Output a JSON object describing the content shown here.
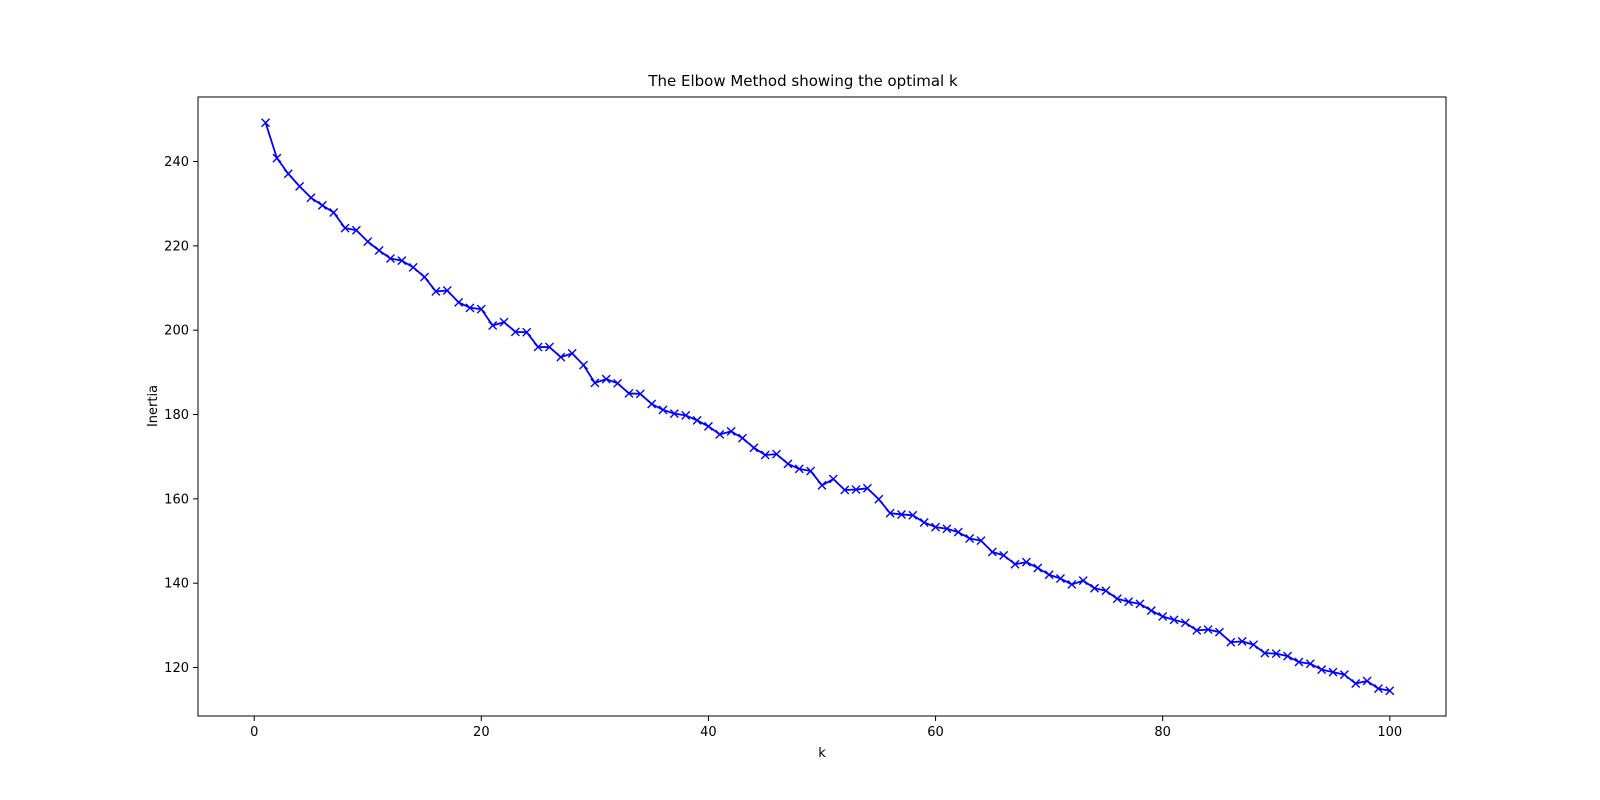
{
  "chart_data": {
    "type": "line",
    "title": "The Elbow Method showing the optimal k",
    "xlabel": "k",
    "ylabel": "Inertia",
    "xlim": [
      -4.95,
      104.95
    ],
    "ylim": [
      108.5,
      255.3
    ],
    "xticks": [
      0,
      20,
      40,
      60,
      80,
      100
    ],
    "yticks": [
      120,
      140,
      160,
      180,
      200,
      220,
      240
    ],
    "grid": false,
    "legend": "none",
    "colors": {
      "line": "#0000ff"
    },
    "marker": "x",
    "series": [
      {
        "x": [
          1,
          2,
          3,
          4,
          5,
          6,
          7,
          8,
          9,
          10,
          11,
          12,
          13,
          14,
          15,
          16,
          17,
          18,
          19,
          20,
          21,
          22,
          23,
          24,
          25,
          26,
          27,
          28,
          29,
          30,
          31,
          32,
          33,
          34,
          35,
          36,
          37,
          38,
          39,
          40,
          41,
          42,
          43,
          44,
          45,
          46,
          47,
          48,
          49,
          50,
          51,
          52,
          53,
          54,
          55,
          56,
          57,
          58,
          59,
          60,
          61,
          62,
          63,
          64,
          65,
          66,
          67,
          68,
          69,
          70,
          71,
          72,
          73,
          74,
          75,
          76,
          77,
          78,
          79,
          80,
          81,
          82,
          83,
          84,
          85,
          86,
          87,
          88,
          89,
          90,
          91,
          92,
          93,
          94,
          95,
          96,
          97,
          98,
          99,
          100
        ],
        "values": [
          249.2,
          240.8,
          237.1,
          234.1,
          231.4,
          229.6,
          227.9,
          224.2,
          223.7,
          221.0,
          218.9,
          217.0,
          216.5,
          214.9,
          212.6,
          209.2,
          209.4,
          206.6,
          205.3,
          205.0,
          201.1,
          201.9,
          199.6,
          199.5,
          196.0,
          196.0,
          193.6,
          194.5,
          191.7,
          187.5,
          188.4,
          187.4,
          185.0,
          184.9,
          182.5,
          181.1,
          180.2,
          179.8,
          178.6,
          177.2,
          175.3,
          176.0,
          174.4,
          172.1,
          170.4,
          170.6,
          168.3,
          167.1,
          166.6,
          163.2,
          164.7,
          162.1,
          162.2,
          162.5,
          159.9,
          156.6,
          156.3,
          156.1,
          154.4,
          153.3,
          152.9,
          152.1,
          150.6,
          150.1,
          147.4,
          146.6,
          144.5,
          145.0,
          143.6,
          142.0,
          141.1,
          139.7,
          140.6,
          138.8,
          138.2,
          136.3,
          135.6,
          135.1,
          133.5,
          132.1,
          131.3,
          130.6,
          128.8,
          129.0,
          128.4,
          126.0,
          126.2,
          125.4,
          123.4,
          123.3,
          122.7,
          121.3,
          120.9,
          119.5,
          118.9,
          118.3,
          116.2,
          116.8,
          115.0,
          114.5
        ]
      }
    ]
  }
}
